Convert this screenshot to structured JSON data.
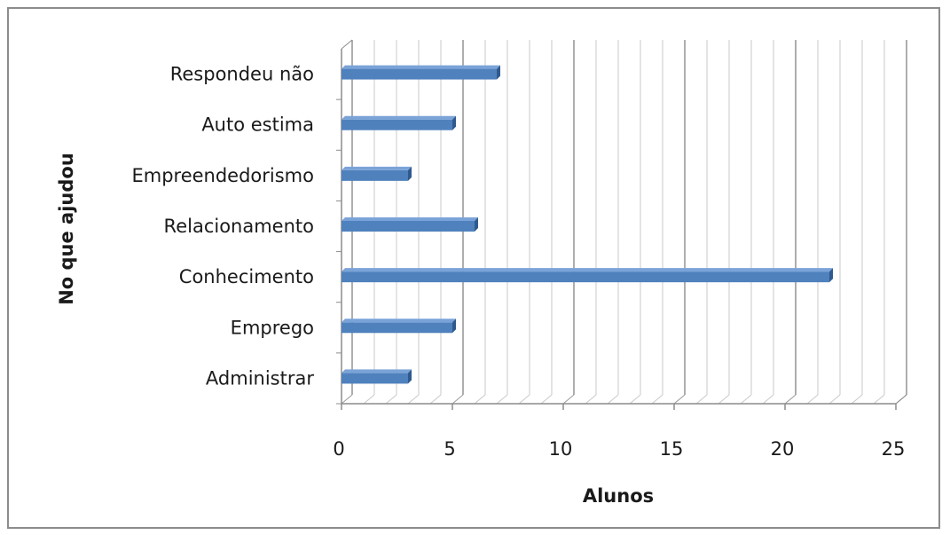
{
  "chart_data": {
    "type": "bar",
    "orientation": "horizontal",
    "categories": [
      "Administrar",
      "Emprego",
      "Conhecimento",
      "Relacionamento",
      "Empreendedorismo",
      "Auto estima",
      "Respondeu não"
    ],
    "values": [
      3,
      5,
      22,
      6,
      3,
      5,
      7
    ],
    "xlabel": "Alunos",
    "ylabel": "No que ajudou",
    "xlim": [
      0,
      25
    ],
    "x_ticks": [
      0,
      5,
      10,
      15,
      20,
      25
    ],
    "grid": true,
    "legend": "none",
    "bar_color": "#4f81bd",
    "bar_top_color": "#7aa3d8",
    "bar_side_color": "#2f5a8f"
  }
}
